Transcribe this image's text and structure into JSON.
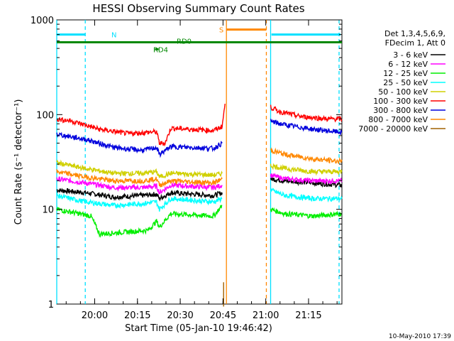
{
  "chart_data": {
    "type": "line",
    "title": "HESSI Observing Summary Count Rates",
    "xlabel": "Start Time (05-Jan-10 19:46:42)",
    "ylabel": "Count Rate (s⁻¹ detector⁻¹)",
    "x_unit": "minutes after 19:46:42",
    "xlim": [
      0,
      100
    ],
    "ylim": [
      1,
      1000
    ],
    "y_scale": "log",
    "x_ticks": [
      {
        "t": 13.3,
        "label": "20:00"
      },
      {
        "t": 28.3,
        "label": "20:15"
      },
      {
        "t": 43.3,
        "label": "20:30"
      },
      {
        "t": 58.3,
        "label": "20:45"
      },
      {
        "t": 73.3,
        "label": "21:00"
      },
      {
        "t": 88.3,
        "label": "21:15"
      }
    ],
    "y_ticks": [
      {
        "v": 1,
        "label": "1"
      },
      {
        "v": 10,
        "label": "10"
      },
      {
        "v": 100,
        "label": "100"
      },
      {
        "v": 1000,
        "label": "1000"
      }
    ],
    "legend_header": [
      "Det 1,3,4,5,6,9,",
      "FDecim 1, Att 0"
    ],
    "legend_placement": "right",
    "series": [
      {
        "name": "3 - 6 keV",
        "color": "#000000",
        "segments": [
          {
            "x": [
              0,
              10,
              20,
              30,
              35,
              36,
              40,
              55,
              58
            ],
            "y": [
              16,
              15,
              13.5,
              14,
              14.5,
              13,
              15,
              14,
              15
            ]
          },
          {
            "x": [
              75,
              80,
              90,
              100
            ],
            "y": [
              21,
              20,
              19,
              18
            ]
          }
        ]
      },
      {
        "name": "6 - 12 keV",
        "color": "#ff00ff",
        "segments": [
          {
            "x": [
              0,
              10,
              20,
              30,
              35,
              36,
              40,
              55,
              58
            ],
            "y": [
              21,
              19,
              17,
              17,
              17.5,
              15,
              18,
              17,
              18
            ]
          },
          {
            "x": [
              75,
              80,
              90,
              100
            ],
            "y": [
              23,
              21,
              20,
              20
            ]
          }
        ]
      },
      {
        "name": "12 - 25 keV",
        "color": "#00ee00",
        "segments": [
          {
            "x": [
              0,
              8,
              12,
              15,
              32,
              35,
              36,
              40,
              55,
              58
            ],
            "y": [
              10,
              9,
              8.5,
              5.5,
              6,
              7.5,
              6.5,
              9,
              8.5,
              11
            ]
          },
          {
            "x": [
              75,
              80,
              90,
              100
            ],
            "y": [
              10,
              9,
              8.5,
              9
            ]
          }
        ]
      },
      {
        "name": "25 - 50 keV",
        "color": "#00ffff",
        "segments": [
          {
            "x": [
              0,
              10,
              20,
              30,
              35,
              36,
              40,
              55,
              58
            ],
            "y": [
              14,
              12,
              11,
              11.5,
              12,
              10,
              13,
              12,
              13
            ]
          },
          {
            "x": [
              75,
              80,
              90,
              100
            ],
            "y": [
              16,
              14,
              13,
              13
            ]
          }
        ]
      },
      {
        "name": "50 - 100 keV",
        "color": "#d0d000",
        "segments": [
          {
            "x": [
              0,
              10,
              20,
              30,
              35,
              36,
              40,
              55,
              58
            ],
            "y": [
              31,
              27,
              24,
              24,
              25,
              22,
              24,
              23,
              24
            ]
          },
          {
            "x": [
              75,
              80,
              90,
              100
            ],
            "y": [
              29,
              27,
              25,
              25
            ]
          }
        ]
      },
      {
        "name": "100 - 300 keV",
        "color": "#ff0000",
        "segments": [
          {
            "x": [
              0,
              5,
              15,
              25,
              35,
              36,
              38,
              40,
              55,
              58,
              59
            ],
            "y": [
              90,
              86,
              70,
              63,
              66,
              50,
              50,
              72,
              68,
              75,
              130
            ]
          },
          {
            "x": [
              75,
              78,
              85,
              95,
              100
            ],
            "y": [
              120,
              108,
              96,
              90,
              90
            ]
          }
        ]
      },
      {
        "name": "300 - 800 keV",
        "color": "#0000dd",
        "segments": [
          {
            "x": [
              0,
              10,
              20,
              30,
              35,
              36,
              40,
              55,
              58
            ],
            "y": [
              62,
              55,
              45,
              42,
              45,
              38,
              46,
              44,
              50
            ]
          },
          {
            "x": [
              75,
              80,
              90,
              100
            ],
            "y": [
              85,
              78,
              70,
              65
            ]
          }
        ]
      },
      {
        "name": "800 - 7000 keV",
        "color": "#ff8800",
        "segments": [
          {
            "x": [
              0,
              10,
              20,
              30,
              35,
              36,
              40,
              55,
              58
            ],
            "y": [
              25,
              22,
              20,
              20,
              21,
              18,
              20,
              19,
              21
            ]
          },
          {
            "x": [
              75,
              80,
              90,
              100
            ],
            "y": [
              42,
              38,
              34,
              32
            ]
          }
        ]
      },
      {
        "name": "7000 - 20000 keV",
        "color": "#a06000",
        "segments": [
          {
            "x": [
              58.5,
              58.5
            ],
            "y": [
              1,
              1.7
            ]
          }
        ]
      }
    ],
    "annotations": {
      "N": {
        "label": "N",
        "color": "#00e0ff",
        "x_start": 0,
        "x_end": 10,
        "y": 700
      },
      "S": {
        "label": "S",
        "color": "#ff8800",
        "x_start": 59.5,
        "x_end": 73.5,
        "y": 790
      },
      "RD0": {
        "label": "RD0",
        "color": "#008800",
        "x_start": 0,
        "x_end": 100,
        "y": 580
      },
      "RD4": {
        "label": "RD4",
        "color": "#008800",
        "x_start": 34.5,
        "x_end": 35.7,
        "y": 490
      },
      "vlines": [
        {
          "x": 0,
          "color": "#00e0ff",
          "dashed": false
        },
        {
          "x": 10,
          "color": "#00e0ff",
          "dashed": true
        },
        {
          "x": 59.5,
          "color": "#ff8800",
          "dashed": false
        },
        {
          "x": 73.5,
          "color": "#ff8800",
          "dashed": true
        },
        {
          "x": 75,
          "color": "#00e0ff",
          "dashed": false
        },
        {
          "x": 99,
          "color": "#00e0ff",
          "dashed": true
        }
      ]
    },
    "footer_stamp": "10-May-2010 17:39"
  }
}
